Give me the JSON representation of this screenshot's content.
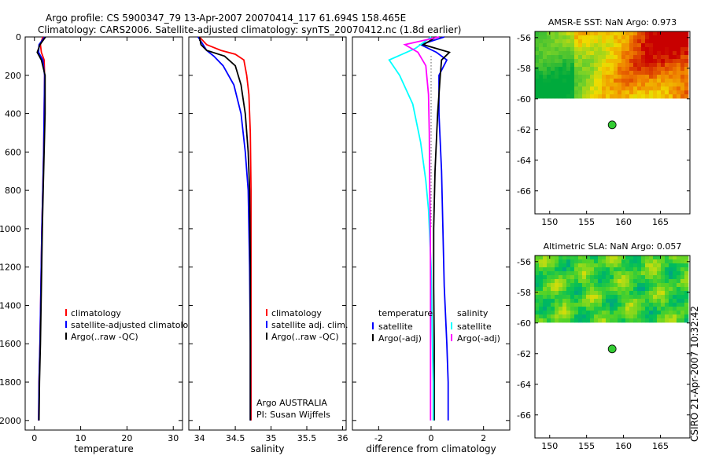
{
  "header": {
    "title_line1": "Argo profile: CS 5900347_79 13-Apr-2007 20070414_117 61.694S 158.465E",
    "title_line2": "Climatology: CARS2006. Satellite-adjusted climatology: synTS_20070412.nc (1.8d earlier)"
  },
  "footer": {
    "credit": "CSIRO 21-Apr-2007 10:32:42"
  },
  "colors": {
    "climatology": "#ff0000",
    "satellite": "#0000ff",
    "argo": "#000000",
    "salinity_sat": "#00ffff",
    "salinity_argo": "#ff00ff",
    "float_marker": "#33cc33"
  },
  "chart_data": [
    {
      "id": "temperature",
      "type": "line",
      "xlabel": "temperature",
      "ylabel": "",
      "xlim": [
        -2,
        32
      ],
      "ylim": [
        0,
        2050
      ],
      "y_reversed": true,
      "xticks": [
        0,
        10,
        20,
        30
      ],
      "xtick_labels": [
        "0",
        "10",
        "20",
        "30"
      ],
      "yticks": [
        0,
        200,
        400,
        600,
        800,
        1000,
        1200,
        1400,
        1600,
        1800,
        2000
      ],
      "ytick_labels": [
        "0",
        "200",
        "400",
        "600",
        "800",
        "1000",
        "1200",
        "1400",
        "1600",
        "1800",
        "2000"
      ],
      "legend": [
        "climatology",
        "satellite-adjusted climatology",
        "Argo(..raw -QC)"
      ],
      "legend_position": "lower-center",
      "series": [
        {
          "name": "climatology",
          "color": "#ff0000",
          "x": [
            1.8,
            1.3,
            1.5,
            2.1,
            2.2,
            2.1,
            2.0,
            1.8,
            1.6,
            1.4,
            1.2,
            1.0,
            0.9
          ],
          "y": [
            0,
            40,
            80,
            120,
            200,
            400,
            600,
            800,
            1000,
            1300,
            1600,
            1800,
            2000
          ]
        },
        {
          "name": "satellite-adjusted climatology",
          "color": "#0000ff",
          "x": [
            2.2,
            1.0,
            0.9,
            1.8,
            2.2,
            2.1,
            2.0,
            1.8,
            1.6,
            1.4,
            1.2,
            1.0,
            0.9
          ],
          "y": [
            0,
            40,
            80,
            120,
            200,
            400,
            600,
            800,
            1000,
            1300,
            1600,
            1800,
            2000
          ]
        },
        {
          "name": "Argo(..raw -QC)",
          "color": "#000000",
          "x": [
            2.4,
            1.2,
            0.6,
            1.5,
            2.3,
            2.3,
            2.1,
            1.9,
            1.7,
            1.5,
            1.3,
            1.1,
            1.0
          ],
          "y": [
            0,
            40,
            80,
            120,
            200,
            400,
            600,
            800,
            1000,
            1300,
            1600,
            1800,
            2000
          ]
        }
      ]
    },
    {
      "id": "salinity",
      "type": "line",
      "xlabel": "salinity",
      "ylabel": "",
      "xlim": [
        33.85,
        36.05
      ],
      "ylim": [
        0,
        2050
      ],
      "y_reversed": true,
      "xticks": [
        34,
        34.5,
        35,
        35.5,
        36
      ],
      "xtick_labels": [
        "34",
        "34.5",
        "35",
        "35.5",
        "36"
      ],
      "legend": [
        "climatology",
        "satellite adj. clim.",
        "Argo(..raw -QC)"
      ],
      "legend_position": "lower-center",
      "annotations": [
        "Argo AUSTRALIA",
        "PI: Susan Wijffels"
      ],
      "series": [
        {
          "name": "climatology",
          "color": "#ff0000",
          "x": [
            34.0,
            34.1,
            34.3,
            34.5,
            34.62,
            34.66,
            34.69,
            34.71,
            34.72,
            34.72,
            34.72,
            34.72
          ],
          "y": [
            0,
            40,
            70,
            90,
            120,
            200,
            300,
            500,
            800,
            1200,
            1600,
            2000
          ]
        },
        {
          "name": "satellite adj. clim.",
          "color": "#0000ff",
          "x": [
            33.98,
            34.05,
            34.1,
            34.2,
            34.33,
            34.48,
            34.58,
            34.64,
            34.68,
            34.7,
            34.71,
            34.71
          ],
          "y": [
            0,
            40,
            70,
            100,
            150,
            250,
            400,
            600,
            800,
            1200,
            1600,
            2000
          ]
        },
        {
          "name": "Argo(..raw -QC)",
          "color": "#000000",
          "x": [
            34.0,
            34.02,
            34.1,
            34.35,
            34.5,
            34.58,
            34.64,
            34.68,
            34.7,
            34.71,
            34.71,
            34.71
          ],
          "y": [
            0,
            40,
            70,
            100,
            150,
            250,
            400,
            600,
            800,
            1200,
            1600,
            2000
          ]
        }
      ]
    },
    {
      "id": "difference",
      "type": "line",
      "xlabel": "difference from climatology",
      "ylabel": "",
      "xlim": [
        -3,
        3
      ],
      "ylim": [
        0,
        2050
      ],
      "y_reversed": true,
      "xticks": [
        -2,
        0,
        2
      ],
      "xtick_labels": [
        "-2",
        "0",
        "2"
      ],
      "legend": [
        "temperature",
        "satellite",
        "Argo(-adj)",
        "salinity",
        "satellite",
        "Argo(-adj)"
      ],
      "legend_position": "lower-center",
      "series": [
        {
          "name": "temperature satellite",
          "color": "#0000ff",
          "x": [
            0.5,
            -0.4,
            0.2,
            0.6,
            0.3,
            0.3,
            0.4,
            0.45,
            0.5,
            0.6,
            0.65,
            0.65
          ],
          "y": [
            0,
            40,
            80,
            120,
            200,
            400,
            700,
            1000,
            1300,
            1600,
            1800,
            2000
          ]
        },
        {
          "name": "temperature Argo(-adj)",
          "color": "#000000",
          "x": [
            0.2,
            -0.3,
            0.7,
            0.4,
            0.35,
            0.25,
            0.15,
            0.1,
            0.1,
            0.12,
            0.12,
            0.12
          ],
          "y": [
            0,
            40,
            80,
            120,
            200,
            400,
            700,
            1000,
            1300,
            1600,
            1800,
            2000
          ]
        },
        {
          "name": "salinity satellite",
          "color": "#00ffff",
          "x": [
            0.0,
            -0.6,
            -1.6,
            -1.2,
            -0.7,
            -0.4,
            -0.2,
            -0.1,
            0.0,
            0.05,
            0.08,
            0.08
          ],
          "y": [
            0,
            60,
            120,
            200,
            350,
            550,
            750,
            900,
            1200,
            1600,
            1800,
            2000
          ]
        },
        {
          "name": "salinity Argo(-adj)",
          "color": "#ff00ff",
          "x": [
            0.3,
            -1.0,
            -0.5,
            -0.2,
            -0.1,
            -0.07,
            -0.05,
            -0.03,
            -0.02,
            -0.02,
            -0.02,
            -0.02
          ],
          "y": [
            0,
            40,
            80,
            150,
            300,
            500,
            800,
            1000,
            1300,
            1600,
            1800,
            2000
          ]
        }
      ]
    },
    {
      "id": "sst_map",
      "type": "heatmap",
      "title": "AMSR-E SST: NaN Argo: 0.973",
      "xlim": [
        148,
        169
      ],
      "ylim": [
        -67.5,
        -55.6
      ],
      "xticks": [
        150,
        155,
        160,
        165
      ],
      "xtick_labels": [
        "150",
        "155",
        "160",
        "165"
      ],
      "yticks": [
        -56,
        -58,
        -60,
        -62,
        -64,
        -66
      ],
      "ytick_labels": [
        "-56",
        "-58",
        "-60",
        "-62",
        "-64",
        "-66"
      ],
      "data_extent_lat": [
        -60,
        -55.6
      ],
      "float_position": {
        "lon": 158.465,
        "lat": -61.694
      }
    },
    {
      "id": "sla_map",
      "type": "heatmap",
      "title": "Altimetric SLA: NaN Argo: 0.057",
      "xlim": [
        148,
        169
      ],
      "ylim": [
        -67.5,
        -55.6
      ],
      "xticks": [
        150,
        155,
        160,
        165
      ],
      "xtick_labels": [
        "150",
        "155",
        "160",
        "165"
      ],
      "yticks": [
        -56,
        -58,
        -60,
        -62,
        -64,
        -66
      ],
      "ytick_labels": [
        "-56",
        "-58",
        "-60",
        "-62",
        "-64",
        "-66"
      ],
      "data_extent_lat": [
        -60,
        -55.6
      ],
      "float_position": {
        "lon": 158.465,
        "lat": -61.694
      }
    }
  ]
}
